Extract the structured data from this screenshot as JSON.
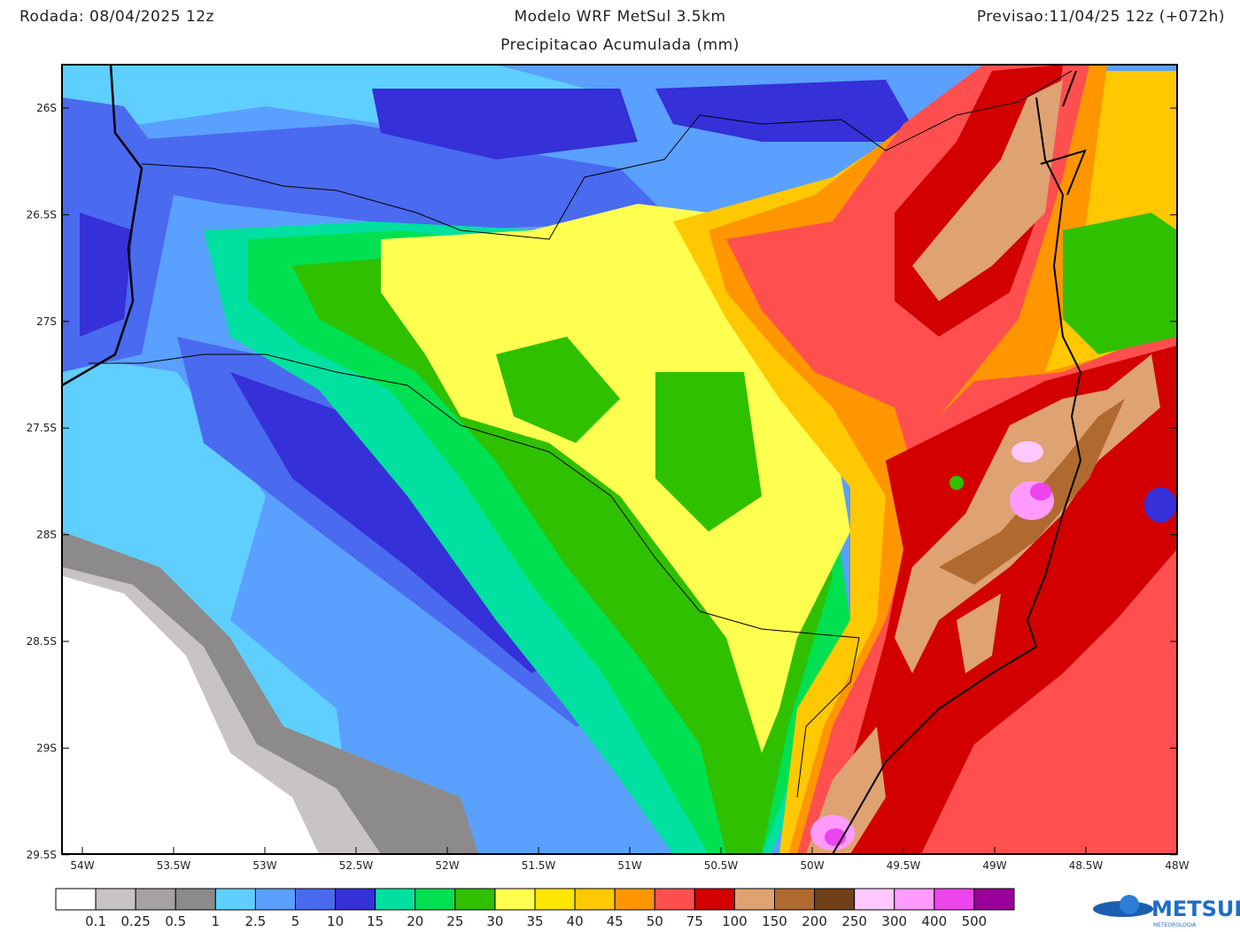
{
  "header": {
    "run": "Rodada: 08/04/2025 12z",
    "title": "Modelo WRF MetSul 3.5km",
    "subtitle": "Precipitacao Acumulada (mm)",
    "forecast": "Previsao:11/04/25 12z (+072h)"
  },
  "map": {
    "lat_labels": [
      "26S",
      "26.5S",
      "27S",
      "27.5S",
      "28S",
      "28.5S",
      "29S",
      "29.5S"
    ],
    "lon_labels": [
      "54W",
      "53.5W",
      "53W",
      "52.5W",
      "52W",
      "51.5W",
      "51W",
      "50.5W",
      "50W",
      "49.5W",
      "49W",
      "48.5W",
      "48W"
    ]
  },
  "colorbar": {
    "colors": [
      "#ffffff",
      "#c9c4c4",
      "#a6a2a2",
      "#8c8a8a",
      "#5fcfff",
      "#5aa0ff",
      "#4a6aef",
      "#3530d8",
      "#00e0a0",
      "#00e050",
      "#2fc000",
      "#ffff50",
      "#ffe600",
      "#ffc800",
      "#ff9600",
      "#ff4f4f",
      "#d20000",
      "#dfa272",
      "#b06a30",
      "#70401a",
      "#ffc8ff",
      "#ff9bff",
      "#ee44ee",
      "#990099"
    ],
    "labels": [
      "0.1",
      "0.25",
      "0.5",
      "1",
      "2.5",
      "5",
      "10",
      "15",
      "20",
      "25",
      "30",
      "35",
      "40",
      "45",
      "50",
      "75",
      "100",
      "150",
      "200",
      "250",
      "300",
      "400",
      "500"
    ]
  },
  "logo": {
    "text": "METSUL",
    "subtext": "METEOROLOGIA"
  }
}
